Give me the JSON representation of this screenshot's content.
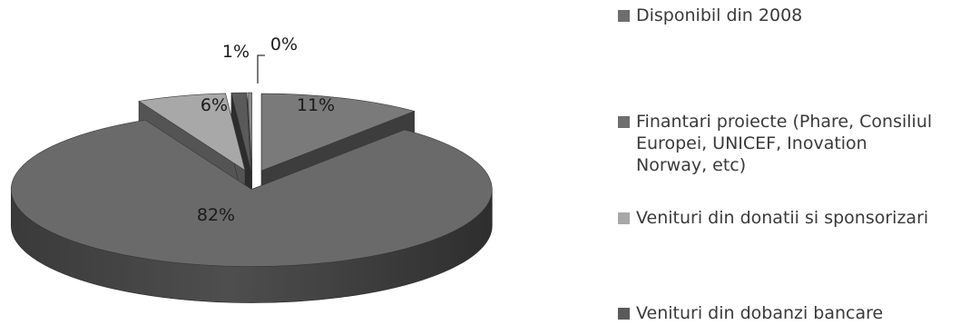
{
  "chart_data": {
    "type": "pie",
    "style": "3d-exploded",
    "title": "",
    "slices": [
      {
        "label": "Disponibil din 2008",
        "value": 11,
        "display": "11%",
        "color": "#7a7a7a"
      },
      {
        "label": "Finantari proiecte (Phare, Consiliul Europei, UNICEF, Inovation Norway, etc)",
        "value": 82,
        "display": "82%",
        "color": "#6a6a6a"
      },
      {
        "label": "Venituri din donatii si sponsorizari",
        "value": 6,
        "display": "6%",
        "color": "#a8a8a8"
      },
      {
        "label": "Venituri din dobanzi bancare",
        "value": 1,
        "display": "1%",
        "color": "#5a5a5a"
      },
      {
        "label": "",
        "value": 0.3,
        "display": "0%",
        "color": "#8a8a8a"
      }
    ],
    "legend": {
      "position": "right",
      "entries": [
        {
          "lines": [
            "Disponibil din 2008"
          ],
          "color": "#6e6e6e"
        },
        {
          "lines": [
            "Finantari proiecte (Phare, Consiliul",
            "Europei, UNICEF, Inovation",
            "Norway, etc)"
          ],
          "color": "#6e6e6e"
        },
        {
          "lines": [
            "Venituri din donatii si sponsorizari"
          ],
          "color": "#a8a8a8"
        },
        {
          "lines": [
            "Venituri din dobanzi bancare"
          ],
          "color": "#5a5a5a"
        }
      ]
    }
  }
}
